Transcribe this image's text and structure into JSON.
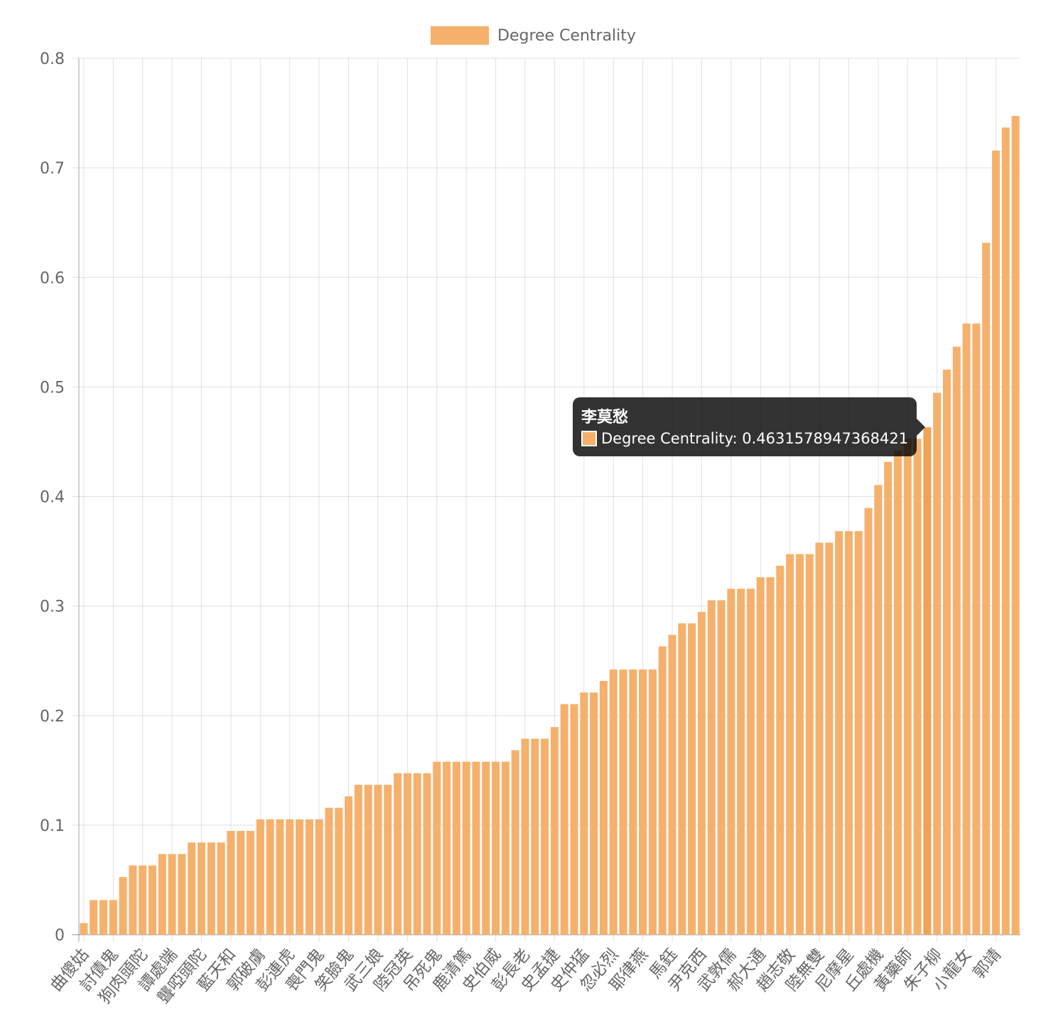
{
  "chart_data": {
    "type": "bar",
    "legend": {
      "label": "Degree Centrality",
      "color": "#f5b16c",
      "position": "top"
    },
    "ylim": [
      0,
      0.8
    ],
    "yticks": [
      "0",
      "0.1",
      "0.2",
      "0.3",
      "0.4",
      "0.5",
      "0.6",
      "0.7",
      "0.8"
    ],
    "grid": true,
    "bar_color": "#f5b16c",
    "series": [
      {
        "name": "Degree Centrality",
        "values": [
          0.0105,
          0.0316,
          0.0316,
          0.0316,
          0.0526,
          0.0632,
          0.0632,
          0.0632,
          0.0737,
          0.0737,
          0.0737,
          0.0842,
          0.0842,
          0.0842,
          0.0842,
          0.0947,
          0.0947,
          0.0947,
          0.1053,
          0.1053,
          0.1053,
          0.1053,
          0.1053,
          0.1053,
          0.1053,
          0.1158,
          0.1158,
          0.1263,
          0.1368,
          0.1368,
          0.1368,
          0.1368,
          0.1474,
          0.1474,
          0.1474,
          0.1474,
          0.1579,
          0.1579,
          0.1579,
          0.1579,
          0.1579,
          0.1579,
          0.1579,
          0.1579,
          0.1684,
          0.1789,
          0.1789,
          0.1789,
          0.1895,
          0.2105,
          0.2105,
          0.2211,
          0.2211,
          0.2316,
          0.2421,
          0.2421,
          0.2421,
          0.2421,
          0.2421,
          0.2632,
          0.2737,
          0.2842,
          0.2842,
          0.2947,
          0.3053,
          0.3053,
          0.3158,
          0.3158,
          0.3158,
          0.3263,
          0.3263,
          0.3368,
          0.3474,
          0.3474,
          0.3474,
          0.3579,
          0.3579,
          0.3684,
          0.3684,
          0.3684,
          0.3895,
          0.4105,
          0.4316,
          0.4421,
          0.4526,
          0.4526,
          0.4632,
          0.4947,
          0.5158,
          0.5368,
          0.5579,
          0.5579,
          0.6316,
          0.7158,
          0.7368,
          0.7474
        ]
      }
    ],
    "tick_labels": [
      {
        "index": 0,
        "text": "曲傻姑"
      },
      {
        "index": 3,
        "text": "討債鬼"
      },
      {
        "index": 6,
        "text": "狗肉頭陀"
      },
      {
        "index": 9,
        "text": "譚處端"
      },
      {
        "index": 12,
        "text": "聾啞頭陀"
      },
      {
        "index": 15,
        "text": "藍天和"
      },
      {
        "index": 18,
        "text": "郭破虜"
      },
      {
        "index": 21,
        "text": "彭連虎"
      },
      {
        "index": 24,
        "text": "喪門鬼"
      },
      {
        "index": 27,
        "text": "笑臉鬼"
      },
      {
        "index": 30,
        "text": "武三娘"
      },
      {
        "index": 33,
        "text": "陸冠英"
      },
      {
        "index": 36,
        "text": "吊死鬼"
      },
      {
        "index": 39,
        "text": "鹿清篤"
      },
      {
        "index": 42,
        "text": "史伯威"
      },
      {
        "index": 45,
        "text": "彭長老"
      },
      {
        "index": 48,
        "text": "史孟捷"
      },
      {
        "index": 51,
        "text": "史仲猛"
      },
      {
        "index": 54,
        "text": "忽必烈"
      },
      {
        "index": 57,
        "text": "耶律燕"
      },
      {
        "index": 60,
        "text": "馬鈺"
      },
      {
        "index": 63,
        "text": "尹克西"
      },
      {
        "index": 66,
        "text": "武敦儒"
      },
      {
        "index": 69,
        "text": "郝大通"
      },
      {
        "index": 72,
        "text": "趙志敬"
      },
      {
        "index": 75,
        "text": "陸無雙"
      },
      {
        "index": 78,
        "text": "尼摩星"
      },
      {
        "index": 81,
        "text": "丘處機"
      },
      {
        "index": 84,
        "text": "黃藥師"
      },
      {
        "index": 87,
        "text": "朱子柳"
      },
      {
        "index": 90,
        "text": "小龍女"
      },
      {
        "index": 93,
        "text": "郭靖"
      }
    ],
    "tooltip": {
      "index": 86,
      "title": "李莫愁",
      "text": "Degree Centrality: 0.4631578947368421"
    }
  }
}
